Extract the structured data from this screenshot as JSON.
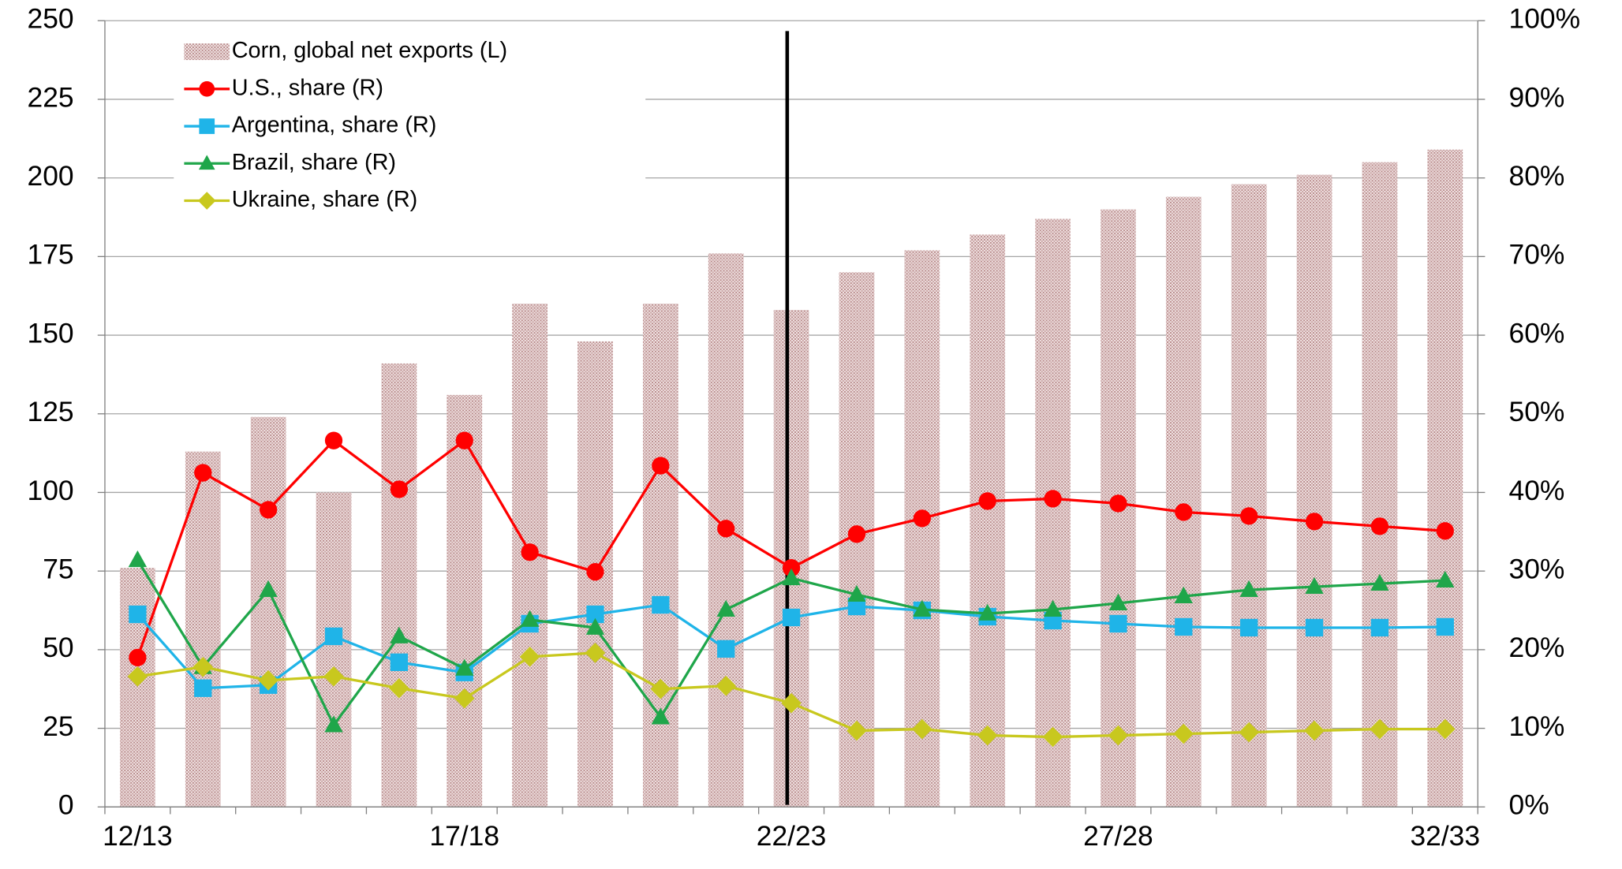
{
  "chart_data": {
    "type": "bar_line",
    "categories": [
      "12/13",
      null,
      null,
      null,
      null,
      "17/18",
      null,
      null,
      null,
      null,
      "22/23",
      null,
      null,
      null,
      null,
      "27/28",
      null,
      null,
      null,
      null,
      "32/33"
    ],
    "bar_series": {
      "name": "Corn, global net exports (L)",
      "color": "#c9a3a3",
      "values": [
        76,
        113,
        124,
        100,
        141,
        131,
        160,
        148,
        160,
        176,
        158,
        170,
        177,
        182,
        187,
        190,
        194,
        198,
        201,
        205,
        209
      ]
    },
    "series": [
      {
        "name": "U.S., share (R)",
        "color": "#ff0000",
        "marker": "circle",
        "axis": "y2",
        "values": [
          19,
          42.5,
          37.8,
          46.6,
          40.4,
          46.6,
          32.4,
          29.9,
          43.4,
          35.4,
          30.4,
          34.7,
          36.7,
          38.9,
          39.2,
          38.6,
          37.5,
          37,
          36.3,
          35.7,
          35.1
        ]
      },
      {
        "name": "Argentina, share (R)",
        "color": "#1fb4e8",
        "marker": "square",
        "axis": "y2",
        "values": [
          24.5,
          15.1,
          15.5,
          21.7,
          18.4,
          17.1,
          23.3,
          24.5,
          25.7,
          20.1,
          24.1,
          25.5,
          25,
          24.2,
          23.7,
          23.3,
          22.9,
          22.8,
          22.8,
          22.8,
          22.9
        ]
      },
      {
        "name": "Brazil, share (R)",
        "color": "#1fa64a",
        "marker": "triangle",
        "axis": "y2",
        "values": [
          31.4,
          17.8,
          27.6,
          10.4,
          21.7,
          17.6,
          23.8,
          22.8,
          11.4,
          25.1,
          29.1,
          27,
          25.1,
          24.6,
          25.1,
          25.9,
          26.8,
          27.6,
          28,
          28.4,
          28.8
        ]
      },
      {
        "name": "Ukraine, share (R)",
        "color": "#c8c81e",
        "marker": "diamond",
        "axis": "y2",
        "values": [
          16.6,
          17.8,
          16.1,
          16.6,
          15.1,
          13.8,
          19.1,
          19.6,
          15,
          15.4,
          13.2,
          9.7,
          9.9,
          9.1,
          8.9,
          9.1,
          9.3,
          9.5,
          9.7,
          9.9,
          9.9
        ]
      }
    ],
    "ylim": [
      0,
      250
    ],
    "yticks": [
      0,
      25,
      50,
      75,
      100,
      125,
      150,
      175,
      200,
      225,
      250
    ],
    "y2lim": [
      0,
      100
    ],
    "y2ticks": [
      {
        "value": 0,
        "label": "0%"
      },
      {
        "value": 10,
        "label": "10%"
      },
      {
        "value": 20,
        "label": "20%"
      },
      {
        "value": 30,
        "label": "30%"
      },
      {
        "value": 40,
        "label": "40%"
      },
      {
        "value": 50,
        "label": "50%"
      },
      {
        "value": 60,
        "label": "60%"
      },
      {
        "value": 70,
        "label": "70%"
      },
      {
        "value": 80,
        "label": "80%"
      },
      {
        "value": 90,
        "label": "90%"
      },
      {
        "value": 100,
        "label": "100%"
      }
    ],
    "grid": true,
    "legend": "upper left"
  }
}
